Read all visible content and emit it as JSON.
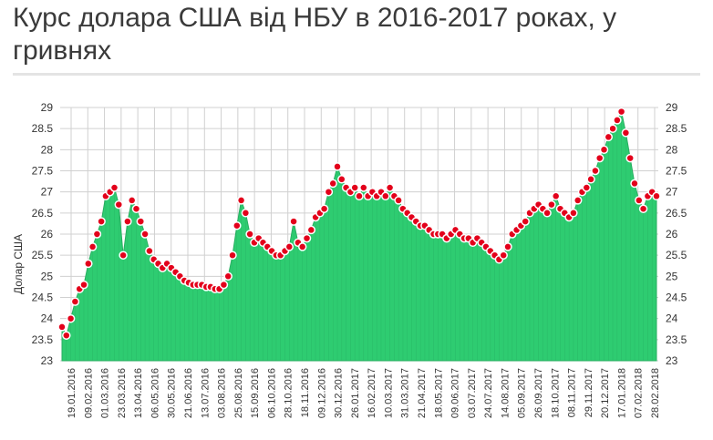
{
  "title": "Курс долара США від НБУ в 2016-2017 роках, у гривнях",
  "chart_data": {
    "type": "area",
    "ylabel": "Долар США",
    "ylim": [
      23,
      29
    ],
    "yticks": [
      "23",
      "23.5",
      "24",
      "24.5",
      "25",
      "25.5",
      "26",
      "26.5",
      "27",
      "27.5",
      "28",
      "28.5",
      "29"
    ],
    "xticks": [
      "19.01.2016",
      "09.02.2016",
      "01.03.2016",
      "23.03.2016",
      "13.04.2016",
      "06.05.2016",
      "30.05.2016",
      "21.06.2016",
      "13.07.2016",
      "03.08.2016",
      "25.08.2016",
      "15.09.2016",
      "06.10.2016",
      "28.10.2016",
      "18.11.2016",
      "09.12.2016",
      "30.12.2016",
      "26.01.2017",
      "16.02.2017",
      "10.03.2017",
      "31.03.2017",
      "21.04.2017",
      "18.05.2017",
      "09.06.2017",
      "03.07.2017",
      "24.07.2017",
      "14.08.2017",
      "05.09.2017",
      "26.09.2017",
      "18.10.2017",
      "08.11.2017",
      "29.11.2017",
      "20.12.2017",
      "17.01.2018",
      "07.02.2018",
      "28.02.2018"
    ],
    "series": [
      {
        "values": [
          23.8,
          23.6,
          24.0,
          24.4,
          24.7,
          24.8,
          25.3,
          25.7,
          26.0,
          26.3,
          26.9,
          27.0,
          27.1,
          26.7,
          25.5,
          26.3,
          26.8,
          26.6,
          26.3,
          26.0,
          25.6,
          25.4,
          25.3,
          25.2,
          25.3,
          25.2,
          25.1,
          25.0,
          24.9,
          24.85,
          24.8,
          24.8,
          24.8,
          24.75,
          24.75,
          24.7,
          24.7,
          24.8,
          25.0,
          25.5,
          26.2,
          26.8,
          26.5,
          26.0,
          25.8,
          25.9,
          25.8,
          25.7,
          25.6,
          25.5,
          25.5,
          25.6,
          25.7,
          26.3,
          25.8,
          25.7,
          25.9,
          26.1,
          26.4,
          26.5,
          26.6,
          27.0,
          27.2,
          27.6,
          27.3,
          27.1,
          27.0,
          27.1,
          26.9,
          27.1,
          26.9,
          27.0,
          26.9,
          27.0,
          26.9,
          27.1,
          26.9,
          26.8,
          26.6,
          26.5,
          26.4,
          26.3,
          26.2,
          26.2,
          26.1,
          26.0,
          26.0,
          26.0,
          25.9,
          26.0,
          26.1,
          26.0,
          25.9,
          25.9,
          25.8,
          25.9,
          25.8,
          25.7,
          25.6,
          25.5,
          25.4,
          25.5,
          25.7,
          26.0,
          26.1,
          26.2,
          26.3,
          26.5,
          26.6,
          26.7,
          26.6,
          26.5,
          26.7,
          26.9,
          26.6,
          26.5,
          26.4,
          26.5,
          26.8,
          27.0,
          27.1,
          27.3,
          27.5,
          27.8,
          28.0,
          28.3,
          28.5,
          28.7,
          28.9,
          28.4,
          27.8,
          27.2,
          26.8,
          26.6,
          26.9,
          27.0,
          26.9
        ]
      }
    ],
    "colors": {
      "area": "#2ecc71",
      "area_edge": "#27ae60",
      "marker": "#e3001b",
      "grid": "#d0d0d0"
    },
    "grid": true
  }
}
